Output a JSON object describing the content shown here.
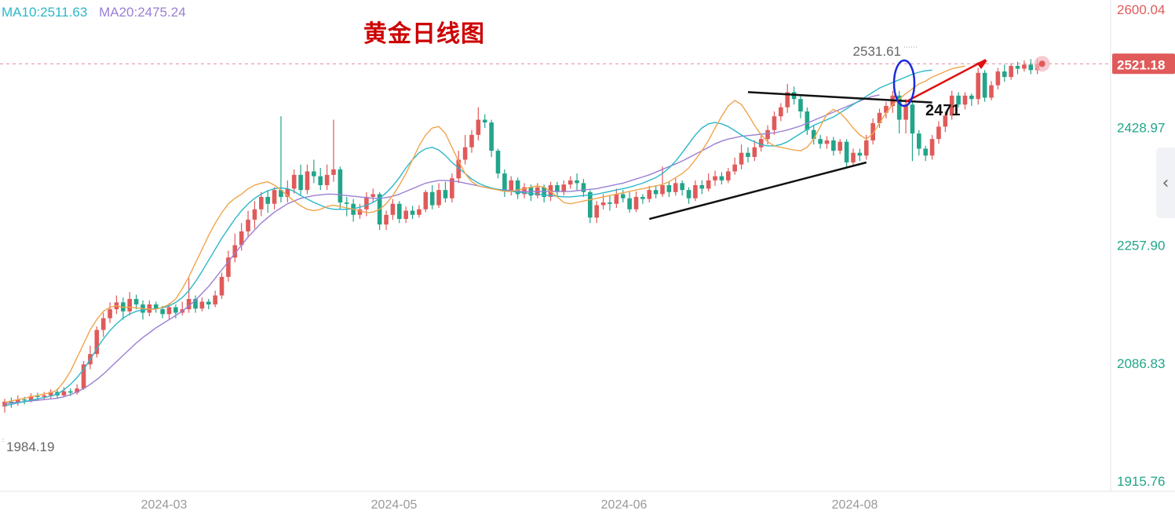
{
  "title": "黄金日线图",
  "legend": {
    "ma10": "MA10:2511.63",
    "ma20": "MA20:2475.24"
  },
  "colors": {
    "up": "#e05a5a",
    "down": "#22a58a",
    "ma5": "#f0a44c",
    "ma10": "#2bb7c9",
    "ma20": "#9b7fd4",
    "price_line": "#e08a9a",
    "annotation_red": "#e01010",
    "annotation_blue": "#1a2cd8"
  },
  "side_toggle_icon": "chevron-left-icon",
  "chart_data": {
    "type": "candlestick",
    "y_ticks": [
      "2600.04",
      "2428.97",
      "2257.90",
      "2086.83",
      "1915.76"
    ],
    "ylim": [
      1915.76,
      2600.04
    ],
    "x_ticks": [
      "2024-03",
      "2024-05",
      "2024-06",
      "2024-08"
    ],
    "current_price": "2521.18",
    "high_label": "2531.61",
    "low_label": "1984.19",
    "annotation_label": "2471",
    "candles": [
      [
        2024,
        2031,
        2015,
        2035
      ],
      [
        2031,
        2030,
        2022,
        2037
      ],
      [
        2030,
        2034,
        2025,
        2040
      ],
      [
        2034,
        2033,
        2027,
        2038
      ],
      [
        2033,
        2039,
        2030,
        2043
      ],
      [
        2039,
        2038,
        2032,
        2044
      ],
      [
        2038,
        2040,
        2033,
        2045
      ],
      [
        2040,
        2045,
        2036,
        2049
      ],
      [
        2045,
        2040,
        2036,
        2050
      ],
      [
        2040,
        2046,
        2037,
        2052
      ],
      [
        2046,
        2044,
        2039,
        2050
      ],
      [
        2044,
        2050,
        2041,
        2056
      ],
      [
        2050,
        2085,
        2048,
        2090
      ],
      [
        2085,
        2100,
        2078,
        2112
      ],
      [
        2100,
        2135,
        2095,
        2140
      ],
      [
        2135,
        2152,
        2125,
        2160
      ],
      [
        2152,
        2165,
        2145,
        2175
      ],
      [
        2165,
        2175,
        2158,
        2185
      ],
      [
        2175,
        2162,
        2150,
        2182
      ],
      [
        2162,
        2180,
        2156,
        2190
      ],
      [
        2180,
        2172,
        2165,
        2186
      ],
      [
        2172,
        2160,
        2150,
        2178
      ],
      [
        2160,
        2172,
        2155,
        2178
      ],
      [
        2172,
        2165,
        2160,
        2176
      ],
      [
        2165,
        2158,
        2152,
        2170
      ],
      [
        2158,
        2168,
        2150,
        2174
      ],
      [
        2168,
        2160,
        2152,
        2172
      ],
      [
        2160,
        2165,
        2156,
        2176
      ],
      [
        2165,
        2180,
        2160,
        2210
      ],
      [
        2180,
        2166,
        2160,
        2185
      ],
      [
        2166,
        2176,
        2162,
        2182
      ],
      [
        2176,
        2172,
        2165,
        2180
      ],
      [
        2172,
        2185,
        2168,
        2192
      ],
      [
        2185,
        2212,
        2180,
        2218
      ],
      [
        2212,
        2240,
        2205,
        2250
      ],
      [
        2240,
        2258,
        2233,
        2275
      ],
      [
        2258,
        2278,
        2250,
        2290
      ],
      [
        2278,
        2295,
        2270,
        2308
      ],
      [
        2295,
        2310,
        2282,
        2322
      ],
      [
        2310,
        2328,
        2300,
        2335
      ],
      [
        2328,
        2318,
        2305,
        2338
      ],
      [
        2318,
        2338,
        2310,
        2342
      ],
      [
        2338,
        2328,
        2320,
        2445
      ],
      [
        2328,
        2340,
        2320,
        2352
      ],
      [
        2340,
        2360,
        2333,
        2368
      ],
      [
        2360,
        2338,
        2330,
        2375
      ],
      [
        2338,
        2365,
        2332,
        2375
      ],
      [
        2365,
        2358,
        2348,
        2382
      ],
      [
        2358,
        2345,
        2338,
        2370
      ],
      [
        2345,
        2360,
        2338,
        2375
      ],
      [
        2360,
        2368,
        2350,
        2440
      ],
      [
        2368,
        2320,
        2310,
        2372
      ],
      [
        2320,
        2318,
        2300,
        2328
      ],
      [
        2318,
        2302,
        2292,
        2325
      ],
      [
        2302,
        2310,
        2296,
        2318
      ],
      [
        2310,
        2328,
        2300,
        2335
      ],
      [
        2328,
        2332,
        2320,
        2340
      ],
      [
        2332,
        2288,
        2280,
        2335
      ],
      [
        2288,
        2302,
        2280,
        2308
      ],
      [
        2302,
        2318,
        2295,
        2325
      ],
      [
        2318,
        2296,
        2290,
        2322
      ],
      [
        2296,
        2308,
        2290,
        2314
      ],
      [
        2308,
        2302,
        2296,
        2315
      ],
      [
        2302,
        2310,
        2298,
        2316
      ],
      [
        2310,
        2335,
        2306,
        2338
      ],
      [
        2335,
        2316,
        2310,
        2345
      ],
      [
        2316,
        2338,
        2312,
        2348
      ],
      [
        2338,
        2326,
        2320,
        2350
      ],
      [
        2326,
        2355,
        2320,
        2362
      ],
      [
        2355,
        2382,
        2348,
        2395
      ],
      [
        2382,
        2400,
        2375,
        2418
      ],
      [
        2400,
        2418,
        2392,
        2425
      ],
      [
        2418,
        2440,
        2410,
        2458
      ],
      [
        2440,
        2436,
        2428,
        2448
      ],
      [
        2436,
        2395,
        2386,
        2440
      ],
      [
        2395,
        2362,
        2355,
        2398
      ],
      [
        2362,
        2336,
        2328,
        2368
      ],
      [
        2336,
        2352,
        2330,
        2358
      ],
      [
        2352,
        2332,
        2325,
        2356
      ],
      [
        2332,
        2342,
        2326,
        2348
      ],
      [
        2342,
        2330,
        2322,
        2346
      ],
      [
        2330,
        2342,
        2326,
        2348
      ],
      [
        2342,
        2328,
        2320,
        2346
      ],
      [
        2328,
        2345,
        2322,
        2350
      ],
      [
        2345,
        2335,
        2328,
        2350
      ],
      [
        2335,
        2346,
        2330,
        2352
      ],
      [
        2346,
        2352,
        2340,
        2358
      ],
      [
        2352,
        2348,
        2338,
        2362
      ],
      [
        2348,
        2335,
        2328,
        2354
      ],
      [
        2335,
        2298,
        2290,
        2338
      ],
      [
        2298,
        2316,
        2290,
        2322
      ],
      [
        2316,
        2320,
        2310,
        2332
      ],
      [
        2320,
        2318,
        2308,
        2330
      ],
      [
        2318,
        2332,
        2312,
        2340
      ],
      [
        2332,
        2326,
        2320,
        2338
      ],
      [
        2326,
        2310,
        2305,
        2335
      ],
      [
        2310,
        2328,
        2306,
        2336
      ],
      [
        2328,
        2325,
        2318,
        2332
      ],
      [
        2325,
        2338,
        2320,
        2344
      ],
      [
        2338,
        2332,
        2326,
        2345
      ],
      [
        2332,
        2345,
        2328,
        2372
      ],
      [
        2345,
        2335,
        2328,
        2350
      ],
      [
        2335,
        2348,
        2330,
        2355
      ],
      [
        2348,
        2338,
        2330,
        2352
      ],
      [
        2338,
        2326,
        2318,
        2342
      ],
      [
        2326,
        2345,
        2322,
        2352
      ],
      [
        2345,
        2340,
        2332,
        2352
      ],
      [
        2340,
        2352,
        2336,
        2362
      ],
      [
        2352,
        2358,
        2344,
        2366
      ],
      [
        2358,
        2352,
        2346,
        2364
      ],
      [
        2352,
        2365,
        2348,
        2370
      ],
      [
        2365,
        2375,
        2360,
        2385
      ],
      [
        2375,
        2392,
        2368,
        2404
      ],
      [
        2392,
        2386,
        2378,
        2400
      ],
      [
        2386,
        2400,
        2380,
        2410
      ],
      [
        2400,
        2412,
        2394,
        2420
      ],
      [
        2412,
        2425,
        2404,
        2432
      ],
      [
        2425,
        2445,
        2418,
        2452
      ],
      [
        2445,
        2458,
        2438,
        2464
      ],
      [
        2458,
        2480,
        2450,
        2492
      ],
      [
        2480,
        2470,
        2462,
        2488
      ],
      [
        2470,
        2452,
        2442,
        2475
      ],
      [
        2452,
        2425,
        2418,
        2458
      ],
      [
        2425,
        2412,
        2404,
        2432
      ],
      [
        2412,
        2405,
        2398,
        2418
      ],
      [
        2405,
        2410,
        2398,
        2416
      ],
      [
        2410,
        2395,
        2388,
        2415
      ],
      [
        2395,
        2408,
        2390,
        2412
      ],
      [
        2408,
        2378,
        2370,
        2412
      ],
      [
        2378,
        2392,
        2372,
        2398
      ],
      [
        2392,
        2388,
        2380,
        2398
      ],
      [
        2388,
        2410,
        2382,
        2418
      ],
      [
        2410,
        2435,
        2404,
        2442
      ],
      [
        2435,
        2450,
        2428,
        2456
      ],
      [
        2450,
        2460,
        2442,
        2466
      ],
      [
        2460,
        2475,
        2450,
        2482
      ],
      [
        2475,
        2440,
        2420,
        2482
      ],
      [
        2440,
        2462,
        2420,
        2470
      ],
      [
        2462,
        2420,
        2380,
        2468
      ],
      [
        2420,
        2398,
        2388,
        2425
      ],
      [
        2398,
        2388,
        2380,
        2402
      ],
      [
        2388,
        2412,
        2382,
        2418
      ],
      [
        2412,
        2430,
        2405,
        2438
      ],
      [
        2430,
        2446,
        2422,
        2452
      ],
      [
        2446,
        2475,
        2440,
        2482
      ],
      [
        2475,
        2462,
        2458,
        2480
      ],
      [
        2462,
        2475,
        2455,
        2480
      ],
      [
        2475,
        2470,
        2460,
        2478
      ],
      [
        2470,
        2508,
        2462,
        2515
      ],
      [
        2508,
        2472,
        2466,
        2512
      ],
      [
        2472,
        2490,
        2468,
        2496
      ],
      [
        2490,
        2510,
        2484,
        2515
      ],
      [
        2510,
        2502,
        2495,
        2520
      ],
      [
        2502,
        2518,
        2498,
        2522
      ],
      [
        2518,
        2514,
        2506,
        2524
      ],
      [
        2514,
        2520,
        2510,
        2526
      ],
      [
        2520,
        2512,
        2506,
        2528
      ],
      [
        2512,
        2521,
        2506,
        2528
      ]
    ],
    "ma5": [
      2030,
      2032,
      2034,
      2036,
      2038,
      2040,
      2042,
      2044,
      2048,
      2060,
      2075,
      2095,
      2115,
      2135,
      2150,
      2162,
      2168,
      2170,
      2168,
      2168,
      2167,
      2166,
      2165,
      2165,
      2168,
      2172,
      2180,
      2195,
      2212,
      2232,
      2252,
      2272,
      2290,
      2305,
      2318,
      2326,
      2332,
      2340,
      2345,
      2348,
      2350,
      2345,
      2338,
      2330,
      2322,
      2315,
      2310,
      2308,
      2310,
      2314,
      2316,
      2314,
      2312,
      2310,
      2308,
      2305,
      2306,
      2310,
      2318,
      2330,
      2345,
      2362,
      2382,
      2402,
      2418,
      2428,
      2430,
      2420,
      2400,
      2380,
      2362,
      2350,
      2344,
      2342,
      2340,
      2338,
      2336,
      2336,
      2338,
      2340,
      2342,
      2344,
      2342,
      2336,
      2328,
      2320,
      2318,
      2320,
      2322,
      2324,
      2326,
      2328,
      2330,
      2332,
      2334,
      2336,
      2338,
      2340,
      2342,
      2344,
      2346,
      2350,
      2356,
      2362,
      2370,
      2382,
      2395,
      2410,
      2428,
      2445,
      2460,
      2468,
      2462,
      2448,
      2432,
      2418,
      2408,
      2402,
      2400,
      2398,
      2396,
      2395,
      2400,
      2412,
      2430,
      2448,
      2455,
      2450,
      2440,
      2428,
      2418,
      2412,
      2420,
      2435,
      2450,
      2462,
      2470,
      2478,
      2485,
      2492,
      2496,
      2502,
      2506,
      2510,
      2514,
      2516,
      2518
    ],
    "ma10": [
      2025,
      2027,
      2029,
      2031,
      2033,
      2035,
      2037,
      2039,
      2042,
      2048,
      2056,
      2066,
      2078,
      2092,
      2108,
      2122,
      2134,
      2144,
      2152,
      2158,
      2162,
      2164,
      2165,
      2166,
      2167,
      2170,
      2175,
      2182,
      2192,
      2205,
      2220,
      2236,
      2252,
      2268,
      2282,
      2296,
      2308,
      2318,
      2326,
      2332,
      2337,
      2340,
      2341,
      2340,
      2336,
      2330,
      2325,
      2320,
      2316,
      2312,
      2310,
      2310,
      2310,
      2311,
      2313,
      2316,
      2320,
      2326,
      2334,
      2344,
      2356,
      2370,
      2382,
      2392,
      2398,
      2400,
      2396,
      2388,
      2378,
      2370,
      2362,
      2354,
      2348,
      2344,
      2341,
      2339,
      2337,
      2336,
      2335,
      2334,
      2333,
      2332,
      2331,
      2330,
      2329,
      2328,
      2328,
      2329,
      2330,
      2331,
      2332,
      2334,
      2336,
      2338,
      2340,
      2342,
      2345,
      2348,
      2352,
      2356,
      2362,
      2370,
      2380,
      2392,
      2405,
      2418,
      2428,
      2434,
      2436,
      2434,
      2430,
      2424,
      2418,
      2412,
      2408,
      2404,
      2402,
      2402,
      2404,
      2408,
      2414,
      2420,
      2426,
      2432,
      2436,
      2440,
      2444,
      2450,
      2456,
      2462,
      2468,
      2474,
      2480,
      2486,
      2490,
      2494,
      2498,
      2502,
      2506,
      2509,
      2511,
      2512
    ],
    "ma20": [
      2028,
      2029,
      2030,
      2031,
      2032,
      2033,
      2034,
      2035,
      2036,
      2038,
      2041,
      2045,
      2050,
      2056,
      2063,
      2071,
      2080,
      2089,
      2098,
      2107,
      2116,
      2124,
      2131,
      2138,
      2144,
      2150,
      2156,
      2162,
      2170,
      2178,
      2188,
      2198,
      2210,
      2222,
      2234,
      2246,
      2258,
      2270,
      2280,
      2290,
      2298,
      2306,
      2312,
      2318,
      2322,
      2326,
      2328,
      2330,
      2331,
      2332,
      2332,
      2331,
      2330,
      2329,
      2328,
      2327,
      2326,
      2326,
      2327,
      2329,
      2332,
      2336,
      2340,
      2344,
      2348,
      2350,
      2352,
      2352,
      2351,
      2350,
      2348,
      2346,
      2344,
      2342,
      2340,
      2339,
      2338,
      2337,
      2336,
      2336,
      2336,
      2336,
      2336,
      2336,
      2336,
      2336,
      2336,
      2337,
      2338,
      2339,
      2340,
      2342,
      2344,
      2346,
      2348,
      2351,
      2354,
      2357,
      2360,
      2364,
      2368,
      2372,
      2376,
      2380,
      2385,
      2390,
      2395,
      2400,
      2405,
      2409,
      2412,
      2414,
      2416,
      2417,
      2418,
      2419,
      2420,
      2421,
      2423,
      2425,
      2428,
      2431,
      2435,
      2439,
      2443,
      2447,
      2451,
      2455,
      2459,
      2463,
      2467,
      2471,
      2474,
      2476
    ]
  }
}
